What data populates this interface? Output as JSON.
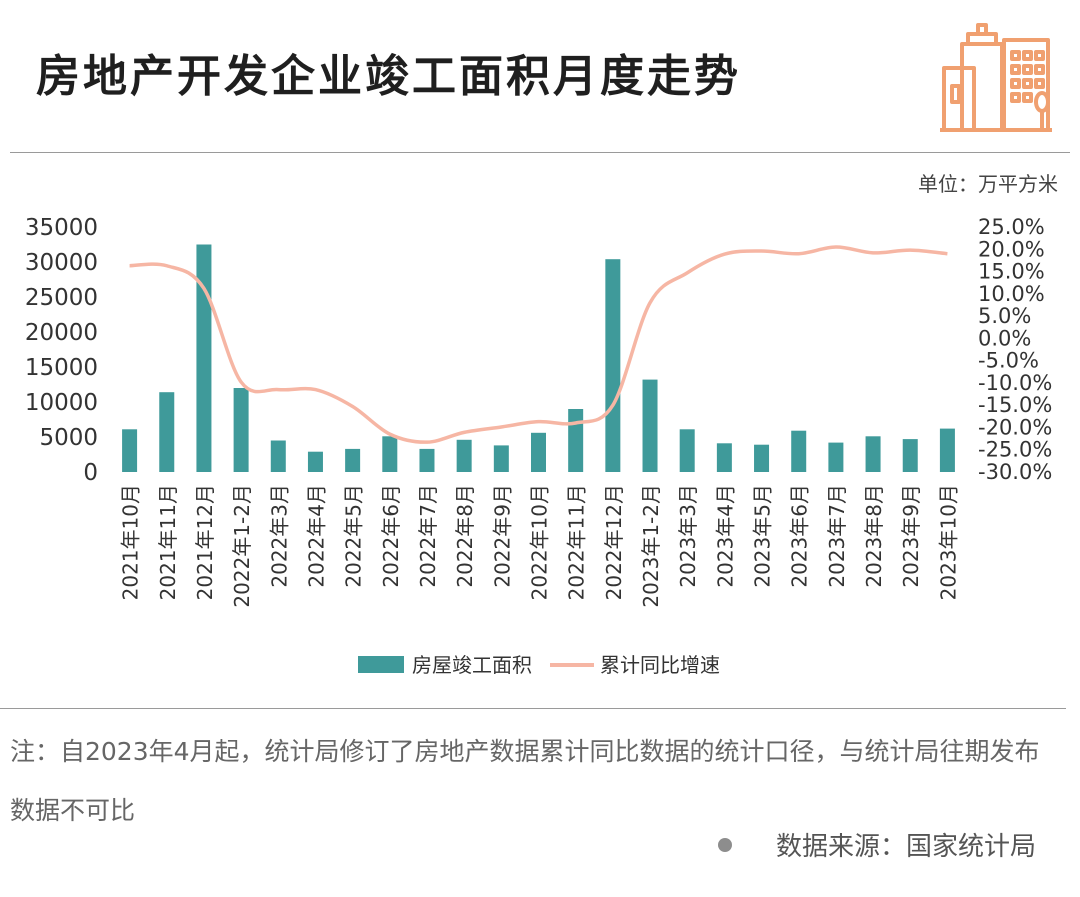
{
  "title": "房地产开发企业竣工面积月度走势",
  "unit": "单位：万平方米",
  "note": "注：自2023年4月起，统计局修订了房地产数据累计同比数据的统计口径，与统计局往期发布数据不可比",
  "source": "数据来源：国家统计局",
  "logo": {
    "icon": "city-buildings-icon",
    "color": "#f0a070"
  },
  "colors": {
    "bar": "#3f9a9a",
    "line": "#f6b6a4"
  },
  "chart_data": {
    "type": "bar+line",
    "categories": [
      "2021年10月",
      "2021年11月",
      "2021年12月",
      "2022年1-2月",
      "2022年3月",
      "2022年4月",
      "2022年5月",
      "2022年6月",
      "2022年7月",
      "2022年8月",
      "2022年9月",
      "2022年10月",
      "2022年11月",
      "2022年12月",
      "2023年1-2月",
      "2023年3月",
      "2023年4月",
      "2023年5月",
      "2023年6月",
      "2023年7月",
      "2023年8月",
      "2023年9月",
      "2023年10月"
    ],
    "series": [
      {
        "name": "房屋竣工面积",
        "type": "bar",
        "axis": "left",
        "values": [
          6100,
          11400,
          32500,
          12000,
          4500,
          2900,
          3300,
          5100,
          3300,
          4600,
          3800,
          5600,
          9000,
          30400,
          13200,
          6100,
          4100,
          3900,
          5900,
          4200,
          5100,
          4700,
          6200
        ]
      },
      {
        "name": "累计同比增速",
        "type": "line",
        "axis": "right",
        "values": [
          16.3,
          16.3,
          11.2,
          -9.8,
          -11.5,
          -11.5,
          -15.3,
          -21.5,
          -23.3,
          -21.1,
          -19.9,
          -18.7,
          -19.0,
          -15.0,
          8.0,
          14.7,
          18.9,
          19.6,
          19.0,
          20.5,
          19.2,
          19.8,
          19.0
        ]
      }
    ],
    "y_left": {
      "min": 0,
      "max": 35000,
      "ticks": [
        "0",
        "5000",
        "10000",
        "15000",
        "20000",
        "25000",
        "30000",
        "35000"
      ]
    },
    "y_right": {
      "min": -30,
      "max": 25,
      "ticks": [
        "-30.0%",
        "-25.0%",
        "-20.0%",
        "-15.0%",
        "-10.0%",
        "-5.0%",
        "0.0%",
        "5.0%",
        "10.0%",
        "15.0%",
        "20.0%",
        "25.0%"
      ]
    },
    "legend": [
      "房屋竣工面积",
      "累计同比增速"
    ],
    "legend_position": "bottom",
    "grid": false
  }
}
